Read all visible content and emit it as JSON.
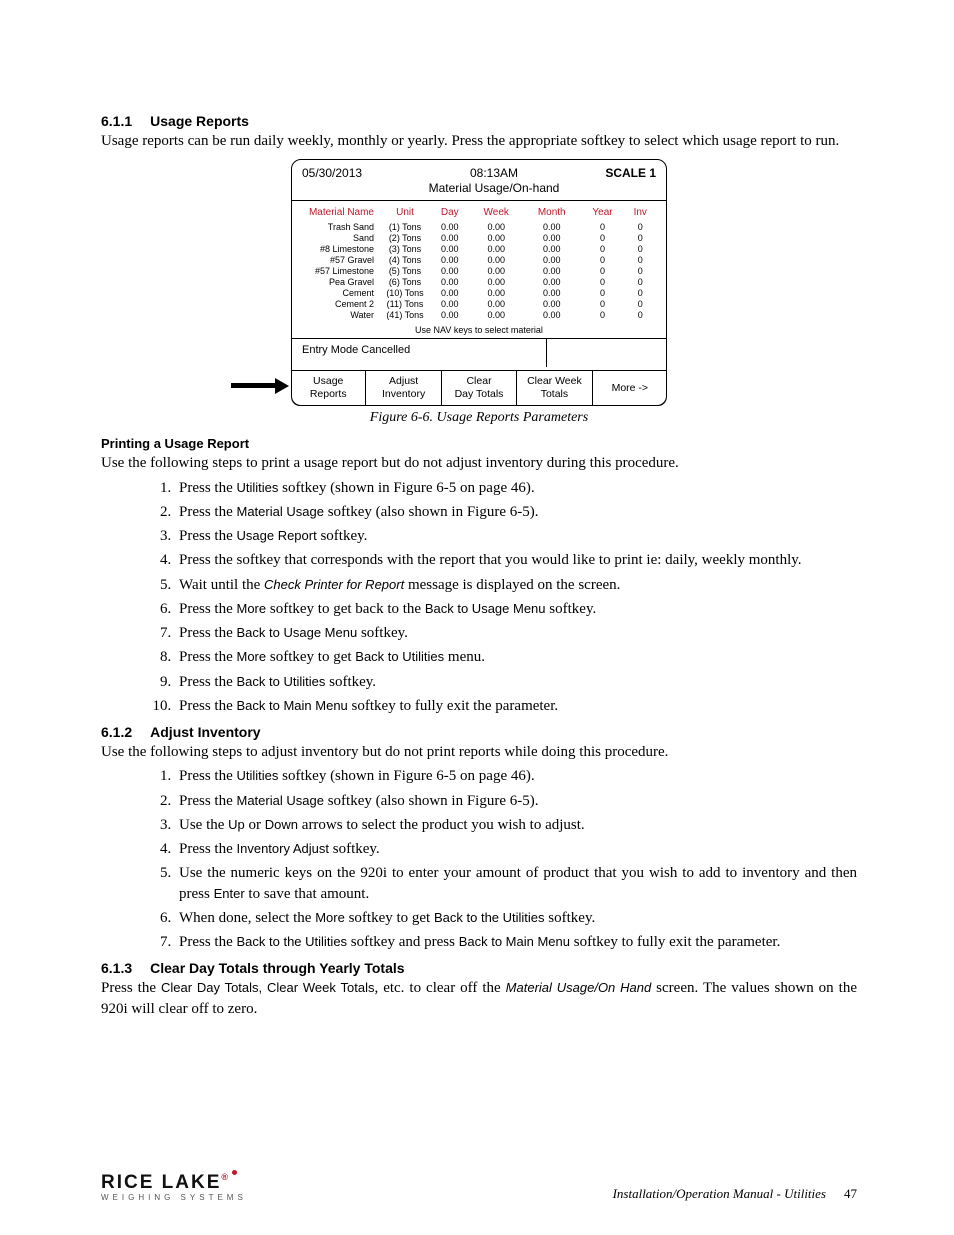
{
  "section1": {
    "num": "6.1.1",
    "title": "Usage Reports"
  },
  "para1": "Usage reports can be run daily weekly, monthly or yearly. Press the appropriate softkey to select which usage report to run.",
  "screen": {
    "date": "05/30/2013",
    "time": "08:13AM",
    "title": "Material Usage/On-hand",
    "scale": "SCALE 1",
    "cols": [
      "Material Name",
      "Unit",
      "Day",
      "Week",
      "Month",
      "Year",
      "Inv"
    ],
    "rows": [
      {
        "name": "Trash Sand",
        "unit": "(1) Tons",
        "day": "0.00",
        "week": "0.00",
        "month": "0.00",
        "year": "0",
        "inv": "0"
      },
      {
        "name": "Sand",
        "unit": "(2) Tons",
        "day": "0.00",
        "week": "0.00",
        "month": "0.00",
        "year": "0",
        "inv": "0"
      },
      {
        "name": "#8 Limestone",
        "unit": "(3) Tons",
        "day": "0.00",
        "week": "0.00",
        "month": "0.00",
        "year": "0",
        "inv": "0"
      },
      {
        "name": "#57 Gravel",
        "unit": "(4) Tons",
        "day": "0.00",
        "week": "0.00",
        "month": "0.00",
        "year": "0",
        "inv": "0"
      },
      {
        "name": "#57 Limestone",
        "unit": "(5) Tons",
        "day": "0.00",
        "week": "0.00",
        "month": "0.00",
        "year": "0",
        "inv": "0"
      },
      {
        "name": "Pea Gravel",
        "unit": "(6) Tons",
        "day": "0.00",
        "week": "0.00",
        "month": "0.00",
        "year": "0",
        "inv": "0"
      },
      {
        "name": "Cement",
        "unit": "(10) Tons",
        "day": "0.00",
        "week": "0.00",
        "month": "0.00",
        "year": "0",
        "inv": "0"
      },
      {
        "name": "Cement 2",
        "unit": "(11) Tons",
        "day": "0.00",
        "week": "0.00",
        "month": "0.00",
        "year": "0",
        "inv": "0"
      },
      {
        "name": "Water",
        "unit": "(41) Tons",
        "day": "0.00",
        "week": "0.00",
        "month": "0.00",
        "year": "0",
        "inv": "0"
      }
    ],
    "navhint": "Use NAV keys to select material",
    "entry": "Entry Mode Cancelled",
    "softkeys": [
      "Usage Reports",
      "Adjust Inventory",
      "Clear Day Totals",
      "Clear Week Totals",
      "More ->"
    ]
  },
  "fig_caption": "Figure 6-6. Usage Reports Parameters",
  "subhead1": "Printing a Usage Report",
  "para2": "Use the following steps to print a usage report but do not adjust inventory during this procedure.",
  "steps1": {
    "s1_a": "Press the ",
    "s1_b": "Utilities",
    "s1_c": " softkey (shown in Figure 6-5 on page 46).",
    "s2_a": "Press the ",
    "s2_b": "Material Usage",
    "s2_c": " softkey (also shown in Figure 6-5).",
    "s3_a": "Press the ",
    "s3_b": "Usage Report",
    "s3_c": " softkey.",
    "s4": "Press the softkey that corresponds with the report that you would like to print ie: daily, weekly monthly.",
    "s5_a": "Wait until the ",
    "s5_b": "Check Printer for Report",
    "s5_c": " message is displayed on the screen.",
    "s6_a": "Press the ",
    "s6_b": "More",
    "s6_c": " softkey to get back to the ",
    "s6_d": "Back to Usage Menu",
    "s6_e": " softkey.",
    "s7_a": "Press the ",
    "s7_b": "Back to Usage Menu",
    "s7_c": " softkey.",
    "s8_a": "Press the ",
    "s8_b": "More",
    "s8_c": " softkey to get ",
    "s8_d": "Back to Utilities",
    "s8_e": " menu.",
    "s9_a": "Press the ",
    "s9_b": "Back to Utilities",
    "s9_c": " softkey.",
    "s10_a": "Press the ",
    "s10_b": "Back to Main Menu",
    "s10_c": " softkey to fully exit the parameter."
  },
  "section2": {
    "num": "6.1.2",
    "title": "Adjust Inventory"
  },
  "para3": "Use the following steps to adjust inventory but do not print reports while doing this procedure.",
  "steps2": {
    "s1_a": "Press the ",
    "s1_b": "Utilities",
    "s1_c": " softkey (shown in Figure 6-5 on page 46).",
    "s2_a": "Press the ",
    "s2_b": "Material Usage",
    "s2_c": " softkey (also shown in Figure 6-5).",
    "s3_a": "Use the ",
    "s3_b": "Up",
    "s3_c": " or ",
    "s3_d": "Down",
    "s3_e": " arrows to select the product you wish to adjust.",
    "s4_a": "Press the ",
    "s4_b": "Inventory Adjust",
    "s4_c": " softkey.",
    "s5_a": "Use the numeric keys on the 920i to enter your amount of product that you wish to add to inventory and then press ",
    "s5_b": "Enter",
    "s5_c": " to save that amount.",
    "s6_a": "When done, select the ",
    "s6_b": "More",
    "s6_c": " softkey to get ",
    "s6_d": "Back to the Utilities",
    "s6_e": " softkey.",
    "s7_a": "Press the ",
    "s7_b": "Back to the Utilities",
    "s7_c": " softkey and press ",
    "s7_d": "Back to Main Menu",
    "s7_e": " softkey to fully exit the parameter."
  },
  "section3": {
    "num": "6.1.3",
    "title": "Clear Day Totals through Yearly Totals"
  },
  "para4_a": "Press the ",
  "para4_b": "Clear Day Totals, Clear Week Totals",
  "para4_c": ", etc. to clear off the ",
  "para4_d": "Material Usage/On Hand",
  "para4_e": " screen. The values shown on the 920i will clear off to zero.",
  "footer": {
    "brand": "RICE LAKE",
    "tag": "WEIGHING SYSTEMS",
    "title": "Installation/Operation Manual - Utilities",
    "page": "47"
  }
}
